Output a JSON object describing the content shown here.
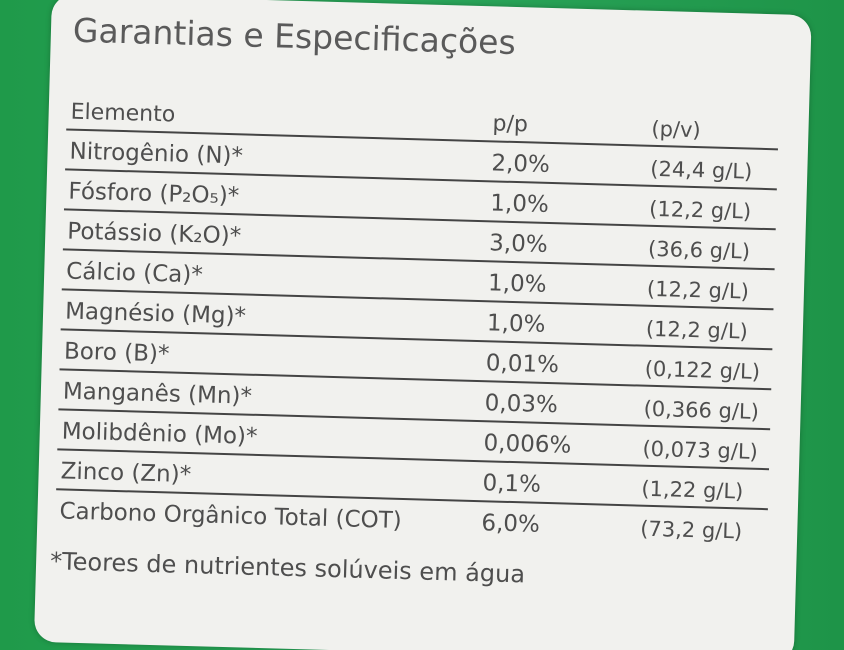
{
  "title": "Garantias e Especificações",
  "table": {
    "header": [
      "Elemento",
      "p/p",
      "(p/v)"
    ],
    "rows": [
      [
        "Nitrogênio (N)*",
        "2,0%",
        "(24,4 g/L)"
      ],
      [
        "Fósforo (P₂O₅)*",
        "1,0%",
        "(12,2 g/L)"
      ],
      [
        "Potássio (K₂O)*",
        "3,0%",
        "(36,6 g/L)"
      ],
      [
        "Cálcio (Ca)*",
        "1,0%",
        "(12,2 g/L)"
      ],
      [
        "Magnésio (Mg)*",
        "1,0%",
        "(12,2 g/L)"
      ],
      [
        "Boro (B)*",
        "0,01%",
        "(0,122 g/L)"
      ],
      [
        "Manganês (Mn)*",
        "0,03%",
        "(0,366 g/L)"
      ],
      [
        "Molibdênio (Mo)*",
        "0,006%",
        "(0,073 g/L)"
      ],
      [
        "Zinco (Zn)*",
        "0,1%",
        "(1,22 g/L)"
      ],
      [
        "Carbono Orgânico Total (COT)",
        "6,0%",
        "(73,2 g/L)"
      ]
    ]
  },
  "footnote": "*Teores de nutrientes solúveis em água"
}
